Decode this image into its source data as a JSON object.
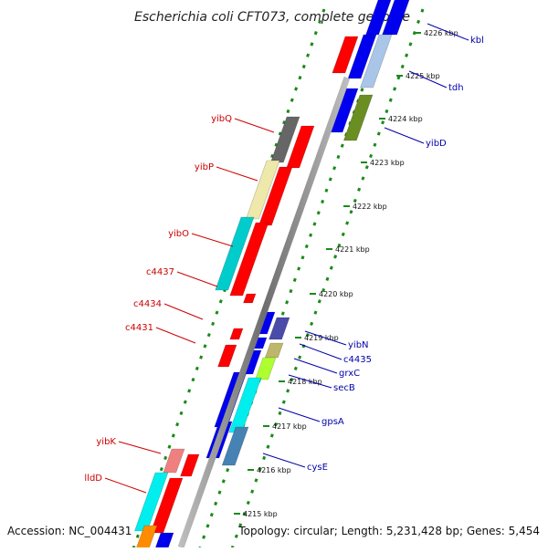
{
  "title": "Escherichia coli CFT073, complete genome",
  "footer": {
    "accession": "Accession: NC_004431",
    "topology": "Topology: circular; Length: 5,231,428 bp; Genes: 5,454"
  },
  "colors": {
    "forward_label": "#cc0000",
    "reverse_label": "#0000aa",
    "tick_green": "#1a8a1a",
    "backbone": "#888888"
  },
  "kbp_labels": [
    "4226 kbp",
    "4225 kbp",
    "4224 kbp",
    "4223 kbp",
    "4222 kbp",
    "4221 kbp",
    "4220 kbp",
    "4219 kbp",
    "4218 kbp",
    "4217 kbp",
    "4216 kbp",
    "4215 kbp"
  ],
  "left_labels": [
    "yibQ",
    "yibP",
    "yibO",
    "c4437",
    "c4434",
    "c4431",
    "yibK",
    "lldD"
  ],
  "right_labels": [
    "kbl",
    "tdh",
    "yibD",
    "yibN",
    "c4435",
    "grxC",
    "secB",
    "gpsA",
    "cysE"
  ]
}
